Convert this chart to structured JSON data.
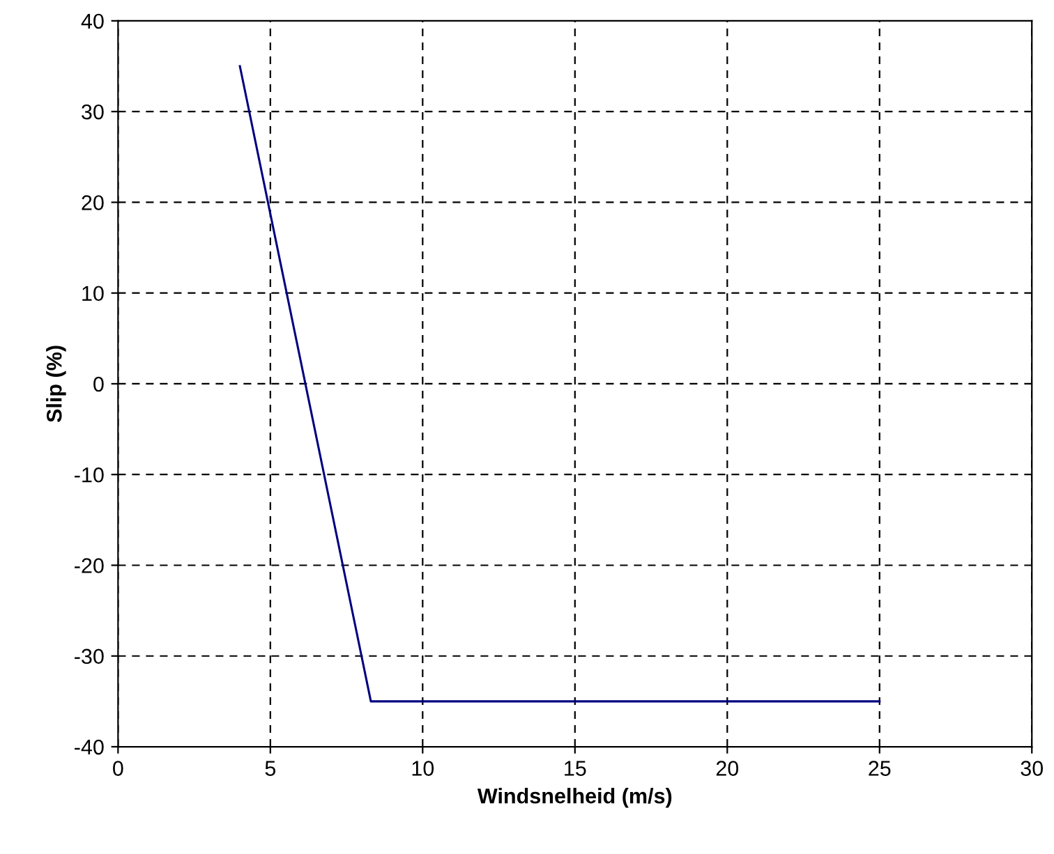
{
  "chart_data": {
    "type": "line",
    "xlabel": "Windsnelheid (m/s)",
    "ylabel": "Slip (%)",
    "series": [
      {
        "color": "#000080",
        "x": [
          4,
          8.3,
          25
        ],
        "values": [
          35,
          -35,
          -35
        ]
      }
    ],
    "xlim": [
      0,
      30
    ],
    "xticks": [
      0,
      5,
      10,
      15,
      20,
      25,
      30
    ],
    "ylim": [
      -40,
      40
    ],
    "yticks": [
      -40,
      -30,
      -20,
      -10,
      0,
      10,
      20,
      30,
      40
    ],
    "grid": true,
    "line_style": "solid",
    "marker": "none"
  }
}
